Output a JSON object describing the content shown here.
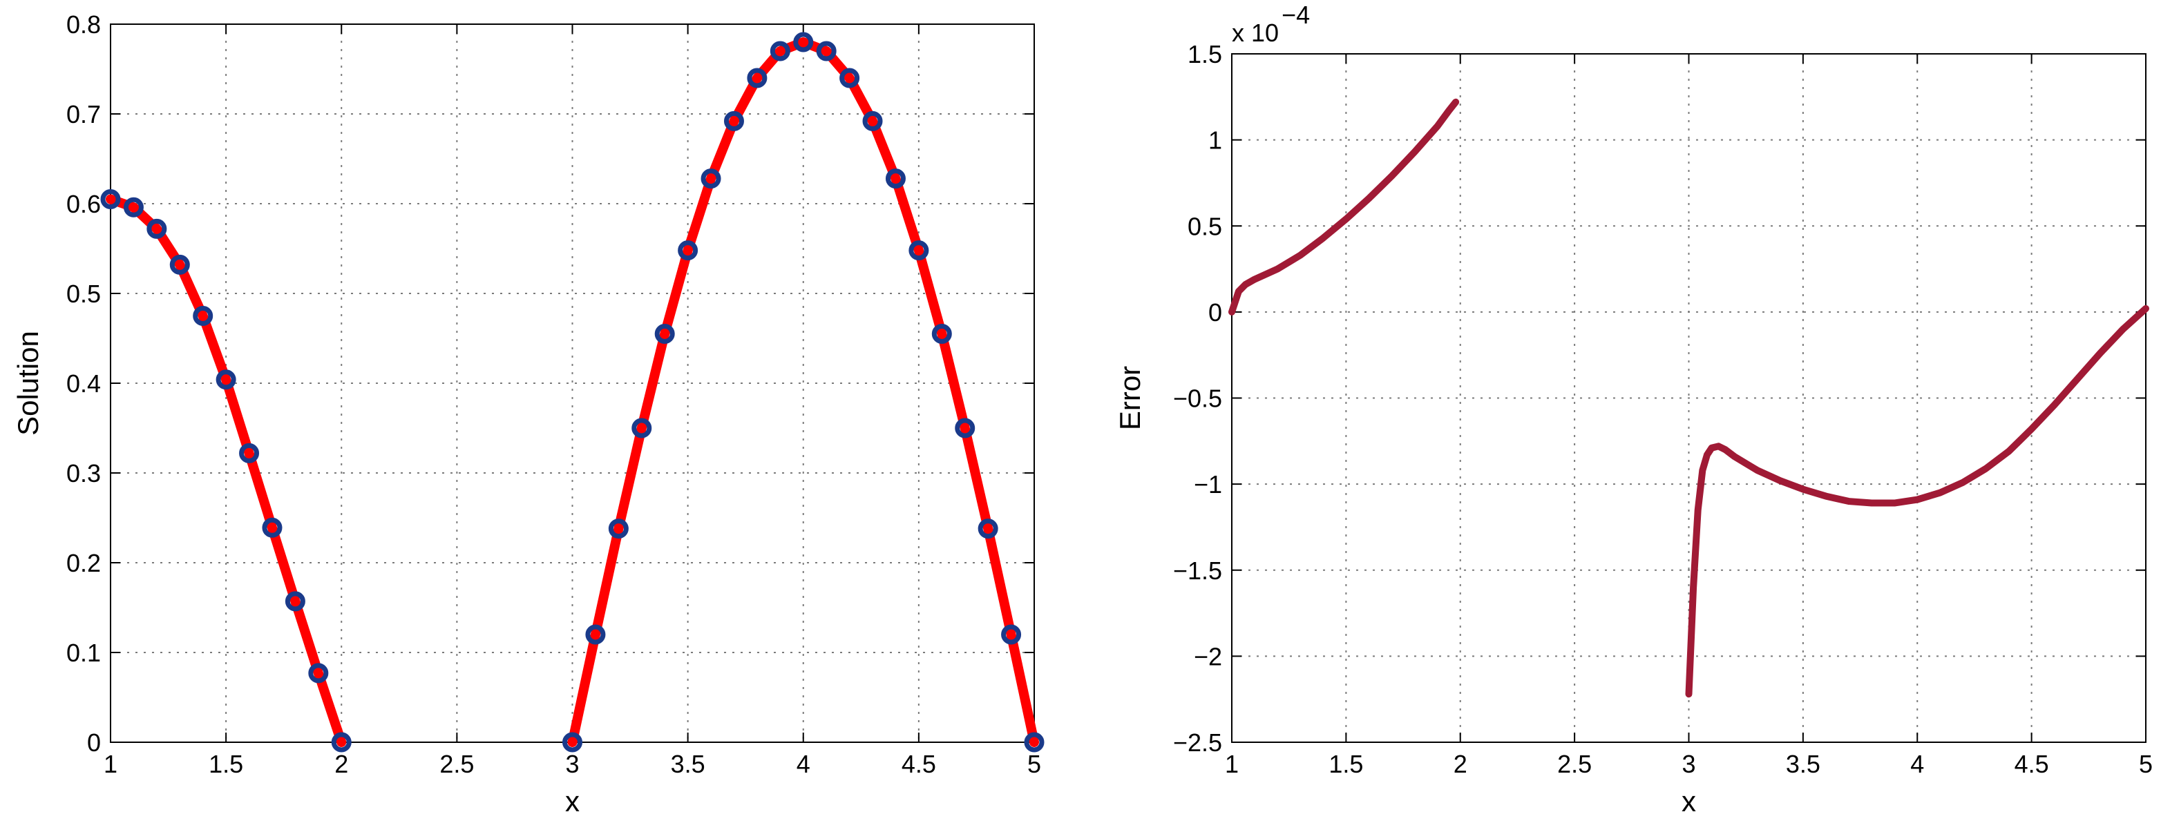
{
  "chart_data": [
    {
      "type": "line",
      "xlabel": "x",
      "ylabel": "Solution",
      "xlim": [
        1,
        5
      ],
      "ylim": [
        0,
        0.8
      ],
      "xticks": [
        "1",
        "1.5",
        "2",
        "2.5",
        "3",
        "3.5",
        "4",
        "4.5",
        "5"
      ],
      "yticks": [
        "0",
        "0.1",
        "0.2",
        "0.3",
        "0.4",
        "0.5",
        "0.6",
        "0.7",
        "0.8"
      ],
      "grid": true,
      "colors": {
        "line": "#ff0000",
        "markers": "#1a3a8a"
      },
      "series": [
        {
          "style": "line",
          "segments": [
            {
              "x": [
                1.0,
                1.1,
                1.2,
                1.3,
                1.4,
                1.5,
                1.6,
                1.7,
                1.8,
                1.9,
                2.0
              ],
              "y": [
                0.605,
                0.596,
                0.572,
                0.532,
                0.475,
                0.404,
                0.322,
                0.239,
                0.157,
                0.077,
                0.0
              ]
            },
            {
              "x": [
                3.0,
                3.1,
                3.2,
                3.3,
                3.4,
                3.5,
                3.6,
                3.7,
                3.8,
                3.9,
                4.0,
                4.1,
                4.2,
                4.3,
                4.4,
                4.5,
                4.6,
                4.7,
                4.8,
                4.9,
                5.0
              ],
              "y": [
                0.0,
                0.12,
                0.238,
                0.35,
                0.455,
                0.548,
                0.628,
                0.692,
                0.74,
                0.77,
                0.78,
                0.77,
                0.74,
                0.692,
                0.628,
                0.548,
                0.455,
                0.35,
                0.238,
                0.12,
                0.0
              ]
            }
          ]
        },
        {
          "style": "markers",
          "segments": [
            {
              "x": [
                1.0,
                1.1,
                1.2,
                1.3,
                1.4,
                1.5,
                1.6,
                1.7,
                1.8,
                1.9,
                2.0
              ],
              "y": [
                0.605,
                0.596,
                0.572,
                0.532,
                0.475,
                0.404,
                0.322,
                0.239,
                0.157,
                0.077,
                0.0
              ]
            },
            {
              "x": [
                3.0,
                3.1,
                3.2,
                3.3,
                3.4,
                3.5,
                3.6,
                3.7,
                3.8,
                3.9,
                4.0,
                4.1,
                4.2,
                4.3,
                4.4,
                4.5,
                4.6,
                4.7,
                4.8,
                4.9,
                5.0
              ],
              "y": [
                0.0,
                0.12,
                0.238,
                0.35,
                0.455,
                0.548,
                0.628,
                0.692,
                0.74,
                0.77,
                0.78,
                0.77,
                0.74,
                0.692,
                0.628,
                0.548,
                0.455,
                0.35,
                0.238,
                0.12,
                0.0
              ]
            }
          ]
        }
      ]
    },
    {
      "type": "line",
      "xlabel": "x",
      "ylabel": "Error",
      "exponent_label": "x 10",
      "exponent_power": "−4",
      "xlim": [
        1,
        5
      ],
      "ylim": [
        -2.5,
        1.5
      ],
      "xticks": [
        "1",
        "1.5",
        "2",
        "2.5",
        "3",
        "3.5",
        "4",
        "4.5",
        "5"
      ],
      "yticks": [
        "−2.5",
        "−2",
        "−1.5",
        "−1",
        "−0.5",
        "0",
        "0.5",
        "1",
        "1.5"
      ],
      "grid": true,
      "colors": {
        "line": "#a01a35"
      },
      "series": [
        {
          "style": "line",
          "segments": [
            {
              "x": [
                1.0,
                1.03,
                1.06,
                1.1,
                1.2,
                1.3,
                1.4,
                1.5,
                1.6,
                1.7,
                1.8,
                1.9,
                1.95,
                1.98
              ],
              "y": [
                0.0,
                0.12,
                0.16,
                0.19,
                0.25,
                0.33,
                0.43,
                0.54,
                0.66,
                0.79,
                0.93,
                1.08,
                1.17,
                1.22
              ]
            },
            {
              "x": [
                3.0,
                3.02,
                3.04,
                3.06,
                3.08,
                3.1,
                3.13,
                3.16,
                3.2,
                3.3,
                3.4,
                3.5,
                3.6,
                3.7,
                3.8,
                3.9,
                4.0,
                4.1,
                4.2,
                4.3,
                4.4,
                4.5,
                4.6,
                4.7,
                4.8,
                4.9,
                5.0
              ],
              "y": [
                -2.22,
                -1.6,
                -1.15,
                -0.92,
                -0.83,
                -0.79,
                -0.78,
                -0.8,
                -0.84,
                -0.92,
                -0.98,
                -1.03,
                -1.07,
                -1.1,
                -1.11,
                -1.11,
                -1.09,
                -1.05,
                -0.99,
                -0.91,
                -0.81,
                -0.68,
                -0.54,
                -0.39,
                -0.24,
                -0.1,
                0.02
              ]
            }
          ]
        }
      ]
    }
  ]
}
